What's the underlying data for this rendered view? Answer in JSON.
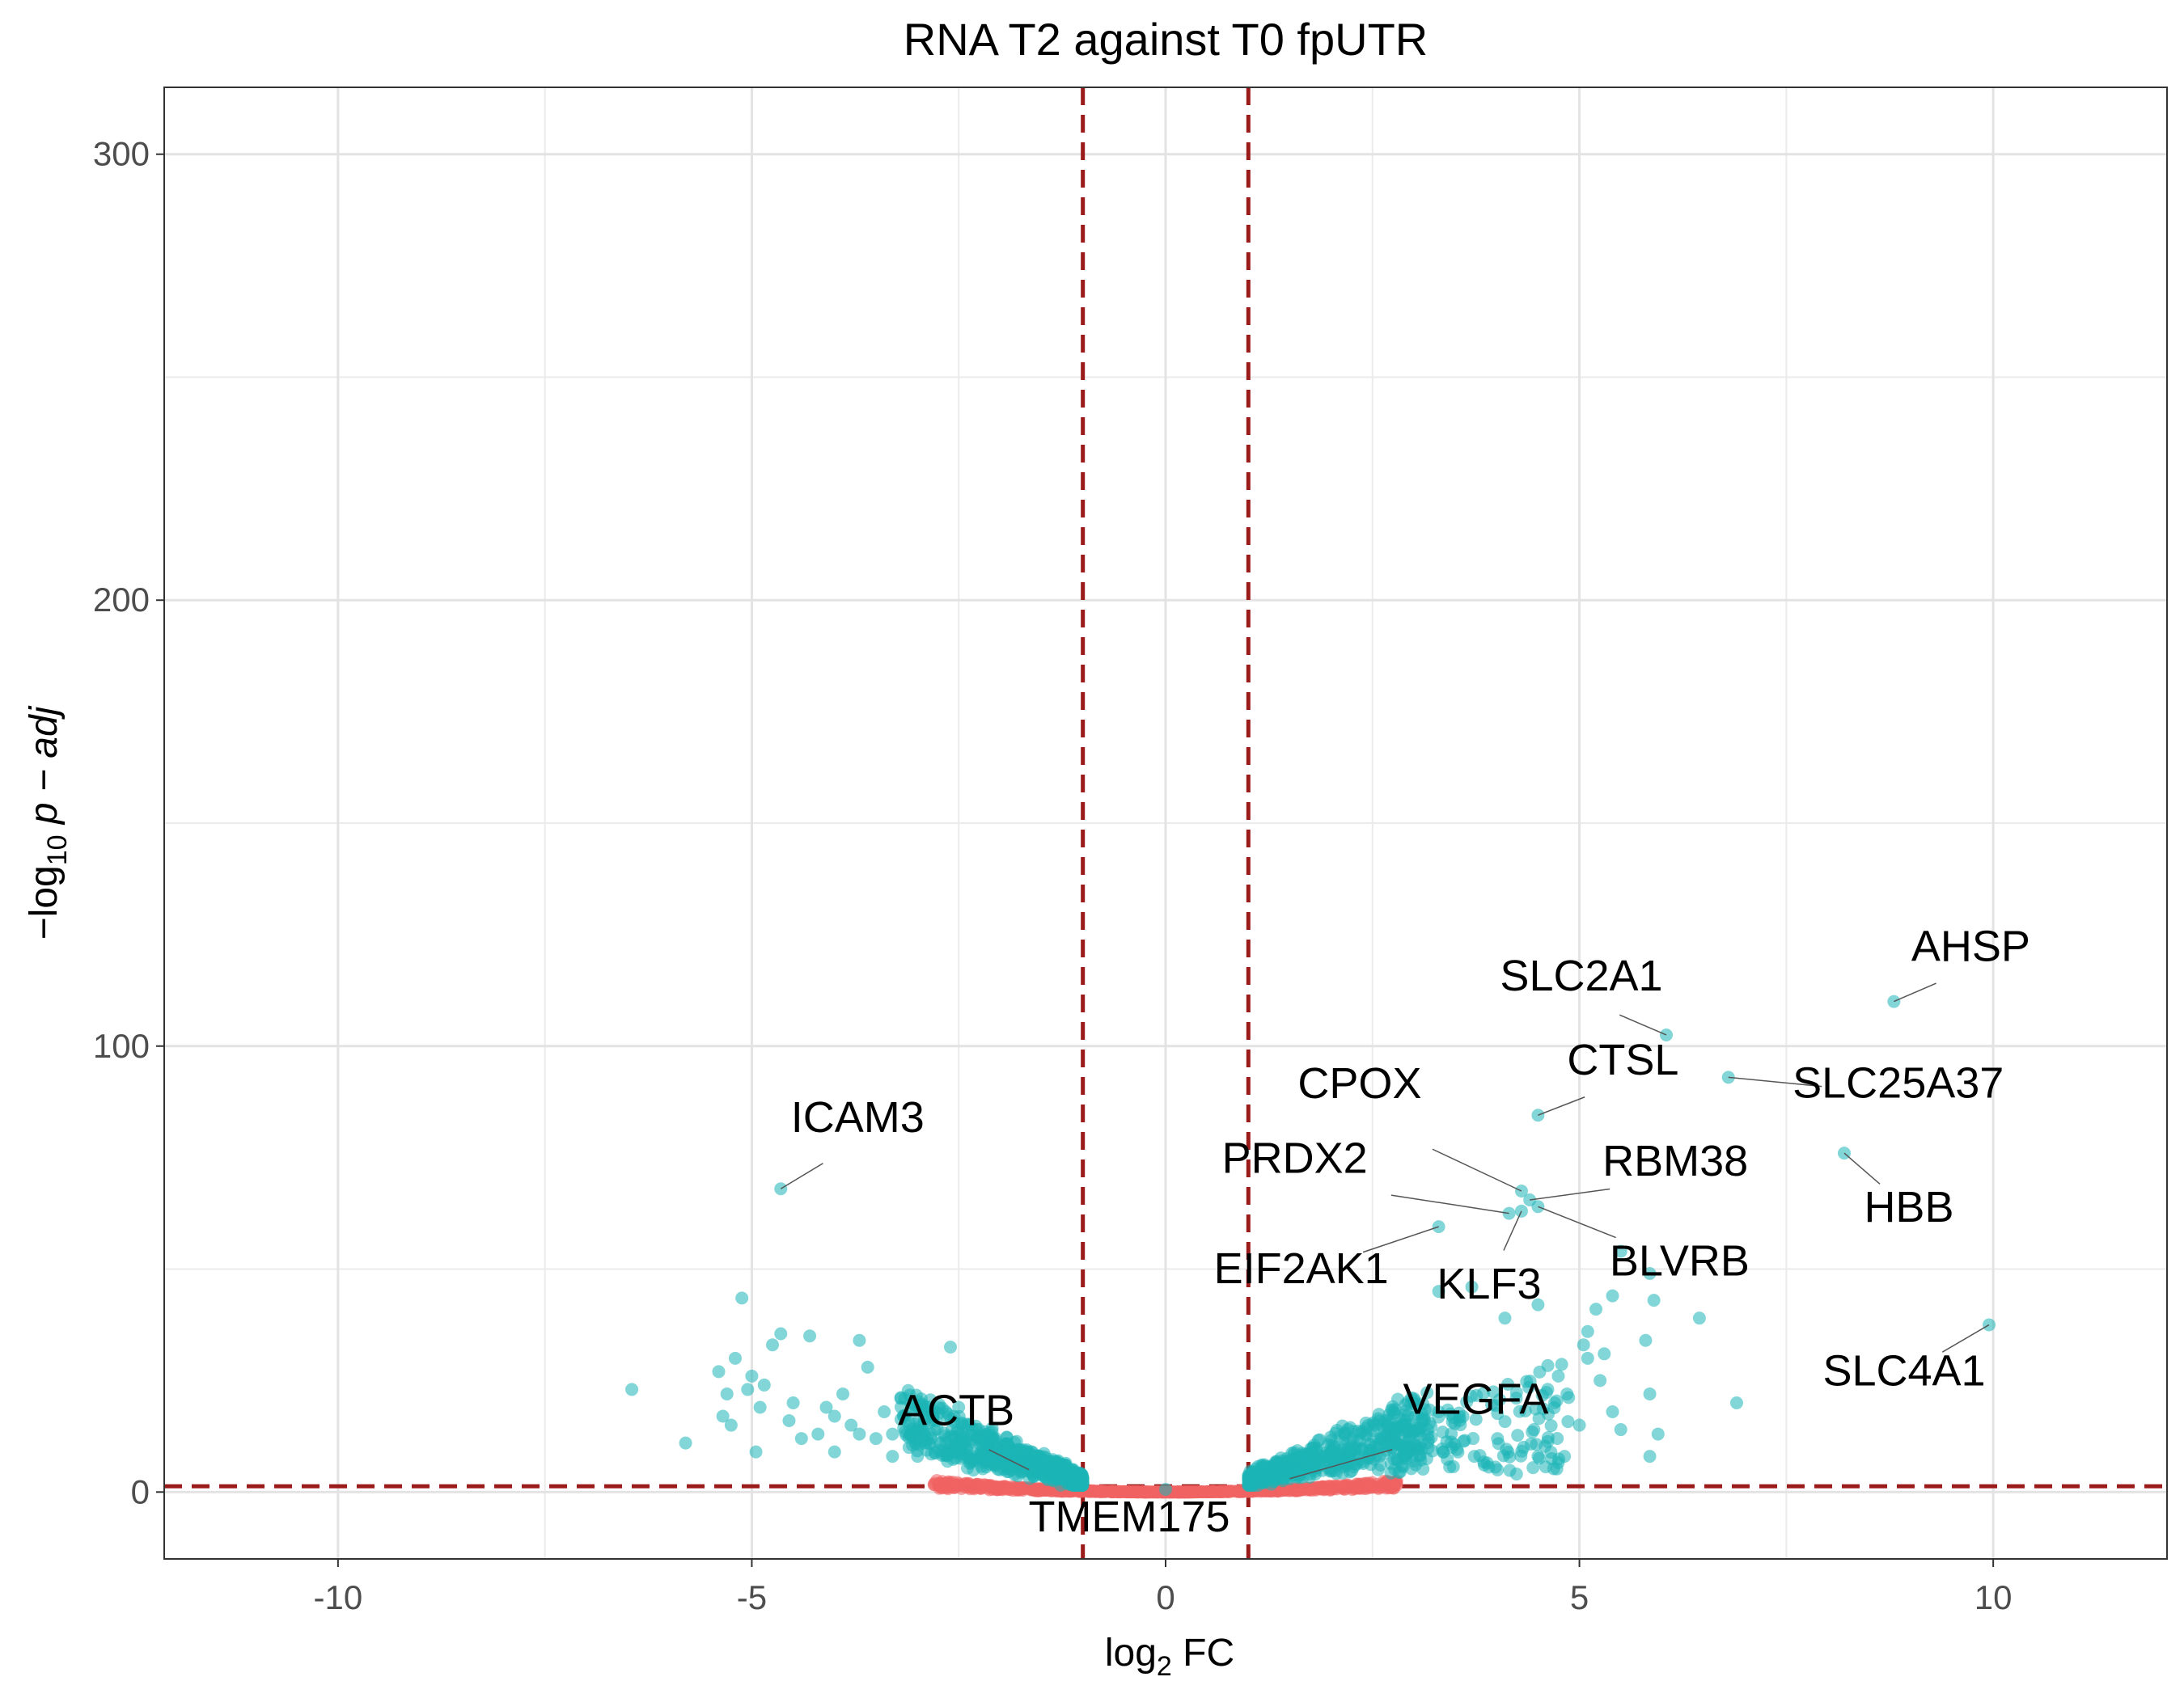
{
  "chart_data": {
    "type": "scatter",
    "title": "RNA T2 against T0 fpUTR",
    "xlabel": {
      "prefix": "log",
      "sub": "2",
      "suffix": " FC"
    },
    "ylabel": {
      "prefix": "−log",
      "sub": "10",
      "suffix": " p − adj"
    },
    "xlim": [
      -12.1,
      12.1
    ],
    "ylim": [
      -15,
      315
    ],
    "x_ticks": [
      {
        "value": -10,
        "label": "-10"
      },
      {
        "value": -5,
        "label": "-5"
      },
      {
        "value": 0,
        "label": "0"
      },
      {
        "value": 5,
        "label": "5"
      },
      {
        "value": 10,
        "label": "10"
      }
    ],
    "y_ticks": [
      {
        "value": 0,
        "label": "0"
      },
      {
        "value": 100,
        "label": "100"
      },
      {
        "value": 200,
        "label": "200"
      },
      {
        "value": 300,
        "label": "300"
      }
    ],
    "x_minor_grid": [
      -7.5,
      -2.5,
      2.5,
      7.5
    ],
    "y_minor_grid": [
      50,
      150,
      250
    ],
    "grid": true,
    "thresholds": {
      "x": [
        -1,
        1
      ],
      "y": 1.3
    },
    "colors": {
      "significant": "#1CB5B7",
      "not_significant": "#F06262",
      "threshold": "#9B1B1B"
    },
    "series": [
      {
        "key": "significant",
        "points": [
          [
            -6.45,
            23
          ],
          [
            -5.8,
            11
          ],
          [
            -5.4,
            27
          ],
          [
            -5.35,
            17
          ],
          [
            -5.3,
            22
          ],
          [
            -5.25,
            15
          ],
          [
            -5.2,
            30
          ],
          [
            -5.12,
            43.5
          ],
          [
            -5.05,
            23
          ],
          [
            -5.0,
            26
          ],
          [
            -4.95,
            9
          ],
          [
            -4.9,
            19
          ],
          [
            -4.85,
            24
          ],
          [
            -4.75,
            33
          ],
          [
            -4.65,
            35.5
          ],
          [
            -4.55,
            16
          ],
          [
            -4.5,
            20
          ],
          [
            -4.3,
            35
          ],
          [
            -4.2,
            13
          ],
          [
            -4.1,
            19
          ],
          [
            -4.0,
            9
          ],
          [
            -3.9,
            22
          ],
          [
            -3.8,
            15
          ],
          [
            -3.7,
            34
          ],
          [
            -3.6,
            28
          ],
          [
            -3.5,
            12
          ],
          [
            -3.4,
            18
          ],
          [
            -3.3,
            8
          ],
          [
            -3.2,
            21
          ],
          [
            -3.0,
            14
          ],
          [
            -2.9,
            11
          ],
          [
            -2.6,
            32.5
          ],
          [
            -2.5,
            19
          ],
          [
            -4.4,
            12
          ],
          [
            -4.0,
            17
          ],
          [
            -3.7,
            13
          ],
          [
            -3.3,
            13
          ],
          [
            -3.1,
            10
          ]
        ]
      }
    ],
    "labels": [
      {
        "text": "ICAM3",
        "x": -4.65,
        "y": 68
      },
      {
        "text": "ACTB",
        "x": -1.65,
        "y": 5
      },
      {
        "text": "TMEM175",
        "x": 0.0,
        "y": 0.6
      },
      {
        "text": "VEGFA",
        "x": 1.5,
        "y": 3
      },
      {
        "text": "EIF2AK1",
        "x": 3.3,
        "y": 59.5
      },
      {
        "text": "PRDX2",
        "x": 4.15,
        "y": 62.5
      },
      {
        "text": "CPOX",
        "x": 4.3,
        "y": 67.5
      },
      {
        "text": "KLF3",
        "x": 4.3,
        "y": 63
      },
      {
        "text": "RBM38",
        "x": 4.4,
        "y": 65.5
      },
      {
        "text": "BLVRB",
        "x": 4.5,
        "y": 64
      },
      {
        "text": "CTSL",
        "x": 4.5,
        "y": 84.5
      },
      {
        "text": "SLC2A1",
        "x": 6.05,
        "y": 102.5
      },
      {
        "text": "SLC25A37",
        "x": 6.8,
        "y": 93
      },
      {
        "text": "AHSP",
        "x": 8.8,
        "y": 110
      },
      {
        "text": "HBB",
        "x": 8.2,
        "y": 76
      },
      {
        "text": "SLC4A1",
        "x": 9.95,
        "y": 37.5
      }
    ]
  }
}
